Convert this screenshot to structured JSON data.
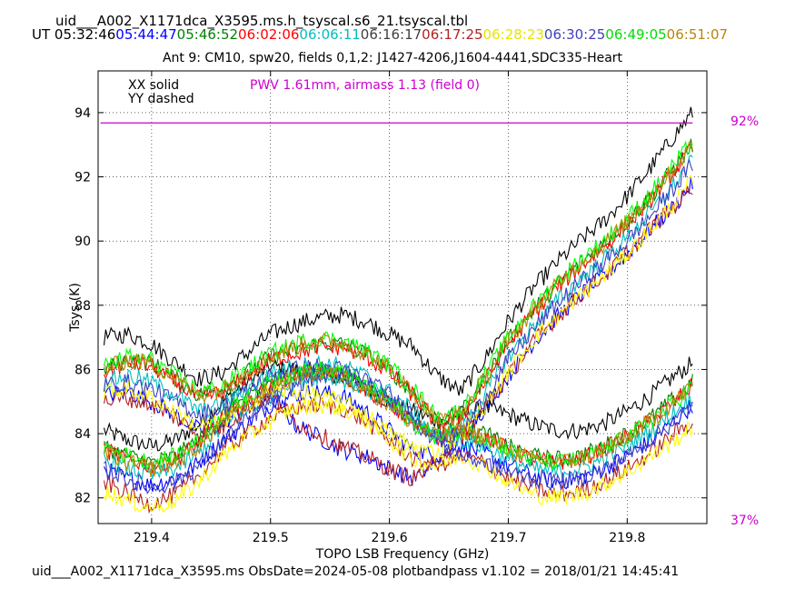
{
  "header": {
    "title": "uid___A002_X1171dca_X3595.ms.h_tsyscal.s6_21.tsyscal.tbl",
    "ut_label": "UT",
    "times": [
      {
        "text": "05:32:46",
        "color": "#000000"
      },
      {
        "text": "05:44:47",
        "color": "#0000ff"
      },
      {
        "text": "05:46:52",
        "color": "#008000"
      },
      {
        "text": "06:02:06",
        "color": "#ff0000"
      },
      {
        "text": "06:06:11",
        "color": "#00bfbf"
      },
      {
        "text": "06:16:17",
        "color": "#404040"
      },
      {
        "text": "06:17:25",
        "color": "#b22222"
      },
      {
        "text": "06:28:23",
        "color": "#e6e600"
      },
      {
        "text": "06:30:25",
        "color": "#4040c0"
      },
      {
        "text": "06:49:05",
        "color": "#00dd00"
      },
      {
        "text": "06:51:07",
        "color": "#b8860b"
      }
    ],
    "subtitle": "Ant 9: CM10,  spw20,  fields 0,1,2: J1427-4206,J1604-4441,SDC335-Heart"
  },
  "footer": {
    "caption": "uid___A002_X1171dca_X3595.ms  ObsDate=2024-05-08   plotbandpass v1.102 = 2018/01/21 14:45:41"
  },
  "chart_data": {
    "type": "line",
    "xlabel": "TOPO LSB Frequency (GHz)",
    "ylabel": "Tsys (K)",
    "xlim": [
      219.355,
      219.867
    ],
    "ylim": [
      81.2,
      95.3
    ],
    "xticks": [
      219.4,
      219.5,
      219.6,
      219.7,
      219.8
    ],
    "xtick_labels": [
      "219.4",
      "219.5",
      "219.6",
      "219.7",
      "219.8"
    ],
    "yticks": [
      82,
      84,
      86,
      88,
      90,
      92,
      94
    ],
    "ytick_labels": [
      "82",
      "84",
      "86",
      "88",
      "90",
      "92",
      "94"
    ],
    "grid": true,
    "legend": {
      "text_lines": [
        "XX solid",
        "YY dashed"
      ],
      "placement": "top-left"
    },
    "annotation": {
      "text": "PWV 1.61mm, airmass 1.13 (field 0)",
      "color": "#cc00cc"
    },
    "atm_transmission": {
      "color": "#cc00cc",
      "top_label": "92%",
      "bottom_label": "37%",
      "x": [
        219.357,
        219.855
      ],
      "y": [
        93.68,
        93.68
      ]
    },
    "x": [
      219.36,
      219.38,
      219.4,
      219.42,
      219.44,
      219.46,
      219.48,
      219.5,
      219.52,
      219.54,
      219.56,
      219.58,
      219.6,
      219.62,
      219.64,
      219.66,
      219.68,
      219.7,
      219.72,
      219.74,
      219.76,
      219.78,
      219.8,
      219.82,
      219.84,
      219.855
    ],
    "series": [
      {
        "color": "#000000",
        "values": [
          84.1,
          83.8,
          83.6,
          83.8,
          84.3,
          85.0,
          85.6,
          86.1,
          86.0,
          85.9,
          85.7,
          85.4,
          85.0,
          84.7,
          84.4,
          84.6,
          84.8,
          84.6,
          84.3,
          84.1,
          84.1,
          84.3,
          84.7,
          85.2,
          85.8,
          86.2
        ]
      },
      {
        "color": "#000000",
        "values": [
          87.0,
          87.1,
          86.8,
          86.2,
          85.7,
          85.9,
          86.5,
          87.1,
          87.4,
          87.6,
          87.7,
          87.5,
          87.1,
          86.7,
          85.8,
          85.3,
          86.3,
          87.5,
          88.5,
          89.3,
          90.0,
          90.6,
          91.4,
          92.3,
          93.3,
          94.0
        ]
      },
      {
        "color": "#0000ff",
        "values": [
          82.9,
          82.6,
          82.4,
          82.6,
          83.1,
          83.8,
          84.3,
          84.9,
          85.2,
          85.3,
          85.2,
          84.7,
          84.1,
          83.5,
          83.3,
          83.6,
          83.4,
          83.0,
          82.7,
          82.5,
          82.6,
          82.9,
          83.3,
          83.8,
          84.4,
          84.9
        ]
      },
      {
        "color": "#0000ff",
        "values": [
          85.2,
          85.3,
          85.0,
          84.6,
          84.1,
          84.3,
          84.9,
          85.3,
          84.3,
          83.9,
          83.5,
          83.3,
          82.9,
          82.6,
          83.1,
          83.9,
          84.8,
          85.8,
          86.8,
          87.6,
          88.3,
          88.9,
          89.6,
          90.4,
          91.1,
          91.8
        ]
      },
      {
        "color": "#008000",
        "values": [
          83.6,
          83.3,
          83.1,
          83.3,
          83.8,
          84.6,
          85.1,
          85.6,
          85.9,
          86.0,
          85.9,
          85.5,
          85.0,
          84.4,
          84.0,
          84.2,
          84.0,
          83.6,
          83.3,
          83.2,
          83.3,
          83.6,
          84.0,
          84.5,
          85.1,
          85.6
        ]
      },
      {
        "color": "#008000",
        "values": [
          86.0,
          86.3,
          86.2,
          85.7,
          85.2,
          85.4,
          85.9,
          86.4,
          86.6,
          86.8,
          86.8,
          86.5,
          86.0,
          85.3,
          84.4,
          84.6,
          85.7,
          86.9,
          87.8,
          88.6,
          89.3,
          89.9,
          90.6,
          91.4,
          92.3,
          93.0
        ]
      },
      {
        "color": "#ff0000",
        "values": [
          83.5,
          83.2,
          83.0,
          83.2,
          83.7,
          84.5,
          85.0,
          85.5,
          85.8,
          85.9,
          85.8,
          85.4,
          84.9,
          84.3,
          83.9,
          84.1,
          83.9,
          83.5,
          83.2,
          83.1,
          83.2,
          83.5,
          83.9,
          84.4,
          85.0,
          85.5
        ]
      },
      {
        "color": "#ff0000",
        "values": [
          85.9,
          86.2,
          86.1,
          85.6,
          85.1,
          85.3,
          85.8,
          86.3,
          86.5,
          86.7,
          86.7,
          86.4,
          85.9,
          85.2,
          84.3,
          84.5,
          85.6,
          86.8,
          87.7,
          88.5,
          89.2,
          89.8,
          90.5,
          91.3,
          92.2,
          92.9
        ]
      },
      {
        "color": "#00bfbf",
        "values": [
          83.2,
          82.9,
          82.7,
          82.9,
          83.4,
          84.2,
          84.7,
          85.2,
          85.6,
          85.8,
          85.7,
          85.4,
          84.9,
          84.4,
          83.9,
          83.8,
          83.6,
          83.2,
          82.9,
          82.8,
          82.9,
          83.2,
          83.6,
          84.1,
          84.7,
          85.1
        ]
      },
      {
        "color": "#00bfbf",
        "values": [
          85.6,
          85.8,
          85.6,
          85.2,
          84.7,
          84.9,
          85.4,
          85.9,
          86.1,
          86.2,
          86.1,
          85.8,
          85.3,
          84.7,
          83.9,
          84.1,
          85.2,
          86.4,
          87.3,
          88.1,
          88.8,
          89.4,
          90.1,
          90.9,
          91.8,
          92.5
        ]
      },
      {
        "color": "#b22222",
        "values": [
          82.5,
          82.1,
          81.8,
          82.1,
          82.7,
          83.5,
          84.0,
          84.5,
          84.8,
          84.9,
          84.8,
          84.4,
          83.8,
          83.2,
          83.0,
          83.3,
          83.1,
          82.6,
          82.3,
          82.1,
          82.2,
          82.5,
          82.9,
          83.4,
          84.0,
          84.4
        ]
      },
      {
        "color": "#b22222",
        "values": [
          85.0,
          85.1,
          84.9,
          84.5,
          84.0,
          84.2,
          84.8,
          85.2,
          84.4,
          84.0,
          83.6,
          83.3,
          82.9,
          82.6,
          83.1,
          83.9,
          84.8,
          85.8,
          86.8,
          87.6,
          88.3,
          88.9,
          89.6,
          90.4,
          91.1,
          91.7
        ]
      },
      {
        "color": "#ffff00",
        "values": [
          82.2,
          81.9,
          81.7,
          81.9,
          82.5,
          83.3,
          83.9,
          84.4,
          84.8,
          84.9,
          84.8,
          84.4,
          83.8,
          83.2,
          83.0,
          83.3,
          83.0,
          82.5,
          82.1,
          82.0,
          82.1,
          82.4,
          82.8,
          83.3,
          83.8,
          84.2
        ]
      },
      {
        "color": "#ffff00",
        "values": [
          85.3,
          85.4,
          85.1,
          84.7,
          84.2,
          84.4,
          84.9,
          85.3,
          85.3,
          85.2,
          85.0,
          84.6,
          84.0,
          83.6,
          83.4,
          84.0,
          84.9,
          85.9,
          86.9,
          87.6,
          88.3,
          88.9,
          89.6,
          90.4,
          91.2,
          91.9
        ]
      },
      {
        "color": "#4040c0",
        "values": [
          82.9,
          82.6,
          82.3,
          82.5,
          83.0,
          83.8,
          84.4,
          85.0,
          85.5,
          85.8,
          85.9,
          85.6,
          85.0,
          84.4,
          83.8,
          83.3,
          83.1,
          82.8,
          82.6,
          82.5,
          82.6,
          82.9,
          83.3,
          83.8,
          84.4,
          84.9
        ]
      },
      {
        "color": "#4040c0",
        "values": [
          85.5,
          85.6,
          85.4,
          85.0,
          84.6,
          84.8,
          85.3,
          85.8,
          86.0,
          86.1,
          86.0,
          85.7,
          85.2,
          84.6,
          83.8,
          84.0,
          85.1,
          86.3,
          87.2,
          88.0,
          88.7,
          89.3,
          90.0,
          90.8,
          91.7,
          92.4
        ]
      },
      {
        "color": "#00ff00",
        "values": [
          83.6,
          83.3,
          83.1,
          83.3,
          83.8,
          84.6,
          85.1,
          85.6,
          85.9,
          86.0,
          85.9,
          85.5,
          85.0,
          84.3,
          83.9,
          84.1,
          83.9,
          83.5,
          83.2,
          83.1,
          83.2,
          83.5,
          83.9,
          84.4,
          85.0,
          85.5
        ]
      },
      {
        "color": "#00ff00",
        "values": [
          86.1,
          86.4,
          86.3,
          85.8,
          85.3,
          85.5,
          86.0,
          86.5,
          86.8,
          87.0,
          86.9,
          86.6,
          86.1,
          85.4,
          84.5,
          84.7,
          85.8,
          87.0,
          87.9,
          88.7,
          89.4,
          90.0,
          90.7,
          91.5,
          92.4,
          93.1
        ]
      },
      {
        "color": "#b8860b",
        "values": [
          83.4,
          83.1,
          82.9,
          83.1,
          83.6,
          84.4,
          84.9,
          85.4,
          85.8,
          85.9,
          85.8,
          85.4,
          84.9,
          84.3,
          83.9,
          84.1,
          83.9,
          83.5,
          83.2,
          83.1,
          83.2,
          83.5,
          83.9,
          84.4,
          85.0,
          85.5
        ]
      },
      {
        "color": "#b8860b",
        "values": [
          86.0,
          86.3,
          86.2,
          85.7,
          85.2,
          85.4,
          85.9,
          86.4,
          86.7,
          86.9,
          86.8,
          86.5,
          86.0,
          85.3,
          84.4,
          84.6,
          85.7,
          86.9,
          87.8,
          88.6,
          89.3,
          89.9,
          90.6,
          91.4,
          92.3,
          93.0
        ]
      }
    ]
  }
}
